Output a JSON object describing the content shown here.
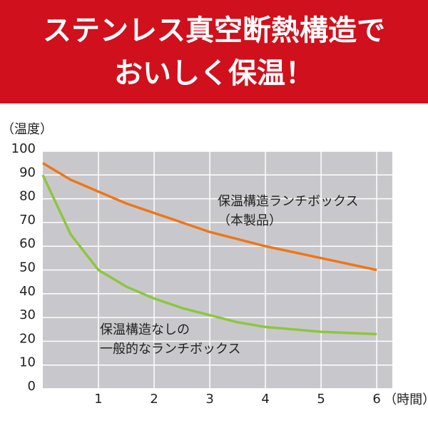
{
  "header": {
    "lines": [
      "ステンレス真空断熱構造で",
      "おいしく保温！"
    ]
  },
  "chart_data": {
    "type": "line",
    "y_label": "（温度）",
    "x_label": "（時間）",
    "x": [
      0,
      0.5,
      1,
      1.5,
      2,
      2.5,
      3,
      3.5,
      4,
      5,
      6
    ],
    "xlim": [
      0,
      6.28
    ],
    "xticks": [
      1,
      2,
      3,
      4,
      5,
      6
    ],
    "ylim": [
      0,
      100
    ],
    "yticks": [
      0,
      10,
      20,
      30,
      40,
      50,
      60,
      70,
      80,
      90,
      100
    ],
    "grid": true,
    "background": "#c8c8cc",
    "series": [
      {
        "label_lines": [
          "保温構造ランチボックス",
          "（本製品）"
        ],
        "color": "#ef7617",
        "values": [
          95,
          88,
          83,
          78,
          74,
          70,
          66,
          63,
          60,
          55,
          50
        ]
      },
      {
        "label_lines": [
          "保温構造なしの",
          "一般的なランチボックス"
        ],
        "color": "#8dc63f",
        "values": [
          90,
          65,
          50,
          43,
          38,
          34,
          31,
          28,
          26,
          24,
          23
        ]
      }
    ]
  }
}
